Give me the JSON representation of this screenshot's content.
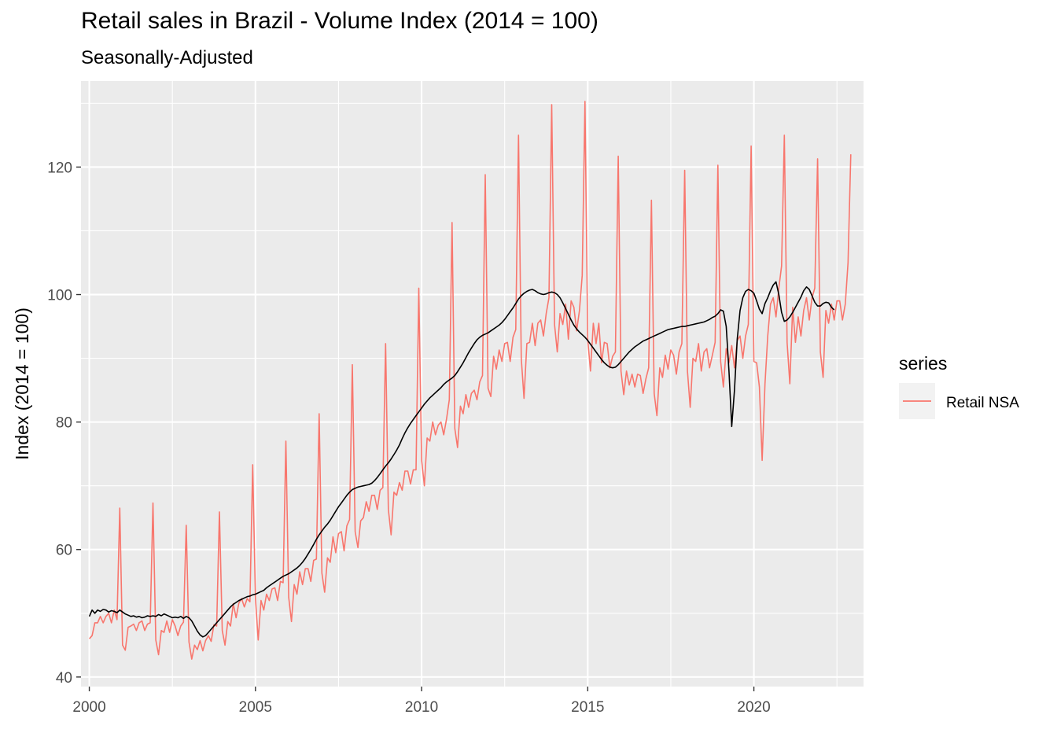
{
  "chart_data": {
    "type": "line",
    "title": "Retail sales in Brazil - Volume Index (2014 = 100)",
    "subtitle": "Seasonally-Adjusted",
    "xlabel": "",
    "ylabel": "Index (2014 = 100)",
    "xlim": [
      1999.75,
      2023.3
    ],
    "ylim": [
      38.5,
      133.5
    ],
    "x_ticks": [
      2000,
      2005,
      2010,
      2015,
      2020
    ],
    "y_ticks": [
      40,
      60,
      80,
      100,
      120
    ],
    "grid": true,
    "legend": {
      "title": "series",
      "position": "right",
      "entries": [
        "Retail NSA"
      ]
    },
    "colors": {
      "nsa": "#F8766D",
      "sa": "#000000",
      "panel": "#EBEBEB",
      "grid": "#FFFFFF"
    },
    "x_start": 2000,
    "series": [
      {
        "name": "Retail NSA",
        "values": [
          46,
          46.5,
          48.5,
          48.5,
          49.5,
          48.5,
          49.5,
          50,
          48.5,
          50.5,
          49,
          66.5,
          45,
          44.2,
          47.8,
          48,
          48.3,
          47.3,
          48.5,
          48.8,
          47.3,
          48.3,
          48.5,
          67.3,
          45.8,
          43.5,
          47.3,
          47,
          48.8,
          47,
          49,
          48,
          46.5,
          48,
          48.6,
          63.8,
          45.5,
          42.8,
          45,
          44.3,
          45.7,
          44.1,
          45.7,
          46.5,
          45.6,
          48.2,
          48,
          65.9,
          47.3,
          45,
          48.7,
          48,
          51.5,
          49.3,
          51.6,
          52.3,
          51,
          52.3,
          51.8,
          73.3,
          52.3,
          45.8,
          52,
          50.5,
          53,
          52,
          53.8,
          54,
          52,
          55,
          54.8,
          77,
          52.5,
          48.7,
          54.5,
          53,
          56.5,
          54.5,
          57,
          57,
          55,
          58.3,
          58.5,
          81.3,
          56.3,
          53.3,
          58.7,
          58,
          62,
          59.5,
          62.5,
          62.8,
          59.8,
          63.7,
          64.7,
          89,
          62.8,
          60.3,
          64.5,
          65,
          67.5,
          66,
          68.5,
          68.5,
          66.3,
          69.3,
          69.7,
          92.3,
          66.3,
          62.3,
          69,
          68.5,
          70.5,
          69.3,
          72.3,
          72.3,
          70.3,
          72.5,
          72.5,
          101,
          74,
          70,
          77.5,
          77,
          80,
          78,
          79.5,
          80,
          78,
          80.5,
          83.5,
          111.3,
          79,
          76,
          82.5,
          81.3,
          84.3,
          82.3,
          84.5,
          85,
          83.5,
          86.3,
          87.3,
          118.8,
          85.3,
          84,
          90.3,
          88.3,
          91.3,
          89.5,
          92.3,
          92.5,
          89.5,
          93.3,
          94.5,
          125,
          90,
          83.7,
          92.3,
          92.5,
          95.5,
          92,
          95.5,
          96,
          93.5,
          97,
          99.5,
          129.8,
          95.3,
          91,
          97,
          95.3,
          98.5,
          93,
          99,
          98,
          94.3,
          97.5,
          103,
          130.3,
          93,
          88,
          95.5,
          92.3,
          95.5,
          89.3,
          92.5,
          92.3,
          88.5,
          90.3,
          91,
          121.7,
          88,
          84.3,
          88,
          85.8,
          87.5,
          85.5,
          87.5,
          87.3,
          84.5,
          86.8,
          88.5,
          114.8,
          84.5,
          81,
          88.5,
          87,
          90.5,
          88.3,
          91.3,
          90.5,
          87.5,
          91,
          92.3,
          119.5,
          88,
          82.3,
          90,
          89.5,
          92.3,
          88,
          91,
          91.5,
          88.5,
          90.5,
          92.5,
          120.3,
          89.5,
          85.5,
          91.5,
          89.3,
          92,
          88.5,
          92.8,
          93.5,
          90,
          93.5,
          95.3,
          123.3,
          89.5,
          89.3,
          85.5,
          74,
          86,
          93.5,
          98.5,
          99.5,
          96.5,
          101,
          104.5,
          125,
          92.5,
          86,
          98,
          92.5,
          96.5,
          93.5,
          97.5,
          99.5,
          96,
          99.5,
          101,
          121.3,
          91,
          87,
          97.5,
          95.5,
          98.5,
          96,
          99,
          99,
          96,
          98.5,
          105,
          122
        ]
      },
      {
        "name": "",
        "values": [
          49.5,
          50.5,
          50,
          50.5,
          50.3,
          50.6,
          50.5,
          50.2,
          50.4,
          50.3,
          50.1,
          50.5,
          50.2,
          49.9,
          49.7,
          49.5,
          49.6,
          49.4,
          49.5,
          49.3,
          49.4,
          49.6,
          49.5,
          49.6,
          49.5,
          49.8,
          49.6,
          49.9,
          49.7,
          49.5,
          49.3,
          49.4,
          49.3,
          49.5,
          49.2,
          49.5,
          49.3,
          48.8,
          48,
          47.2,
          46.6,
          46.3,
          46.5,
          47,
          47.5,
          48,
          48.5,
          49,
          49.5,
          50,
          50.5,
          51,
          51.4,
          51.7,
          52,
          52.2,
          52.4,
          52.6,
          52.7,
          52.9,
          53,
          53.2,
          53.4,
          53.6,
          54,
          54.3,
          54.6,
          54.9,
          55.2,
          55.5,
          55.8,
          56,
          56.2,
          56.5,
          56.8,
          57.1,
          57.5,
          58,
          58.6,
          59.3,
          60,
          60.8,
          61.6,
          62.3,
          62.9,
          63.5,
          64,
          64.6,
          65.3,
          66,
          66.7,
          67.3,
          67.9,
          68.5,
          69,
          69.4,
          69.6,
          69.8,
          69.9,
          70,
          70.1,
          70.2,
          70.4,
          70.8,
          71.3,
          71.9,
          72.5,
          73.1,
          73.6,
          74.2,
          74.9,
          75.6,
          76.4,
          77.4,
          78.3,
          79.1,
          79.8,
          80.4,
          81,
          81.6,
          82.2,
          82.8,
          83.3,
          83.8,
          84.2,
          84.6,
          85,
          85.4,
          85.9,
          86.3,
          86.6,
          86.9,
          87.3,
          87.9,
          88.6,
          89.3,
          90.1,
          90.9,
          91.6,
          92.3,
          92.9,
          93.3,
          93.6,
          93.8,
          94,
          94.3,
          94.6,
          94.9,
          95.2,
          95.6,
          96.1,
          96.7,
          97.3,
          97.9,
          98.6,
          99.3,
          99.8,
          100.2,
          100.5,
          100.7,
          100.8,
          100.6,
          100.3,
          100.1,
          100,
          100.1,
          100.3,
          100.4,
          100.3,
          100,
          99.5,
          98.7,
          97.8,
          96.9,
          96,
          95.2,
          94.6,
          94.1,
          93.7,
          93.3,
          92.8,
          92.2,
          91.6,
          91,
          90.4,
          89.8,
          89.3,
          88.9,
          88.6,
          88.5,
          88.6,
          89,
          89.5,
          90,
          90.5,
          91,
          91.4,
          91.8,
          92.1,
          92.4,
          92.7,
          92.9,
          93.1,
          93.3,
          93.5,
          93.7,
          93.9,
          94.1,
          94.3,
          94.5,
          94.6,
          94.7,
          94.8,
          94.9,
          95,
          95,
          95.1,
          95.2,
          95.3,
          95.4,
          95.5,
          95.6,
          95.7,
          95.9,
          96.1,
          96.4,
          96.6,
          97,
          97.6,
          97.4,
          95,
          88,
          79.3,
          85,
          93,
          97.5,
          99.5,
          100.5,
          100.8,
          100.6,
          100.2,
          99,
          97.7,
          97,
          98.6,
          99.5,
          100.6,
          101.5,
          102,
          100,
          97.2,
          95.8,
          96,
          96.5,
          97.2,
          98,
          98.8,
          99.6,
          100.6,
          101.2,
          100.8,
          99.8,
          98.8,
          98.2,
          98.2,
          98.6,
          98.8,
          98.7,
          98,
          97.6
        ]
      }
    ]
  }
}
